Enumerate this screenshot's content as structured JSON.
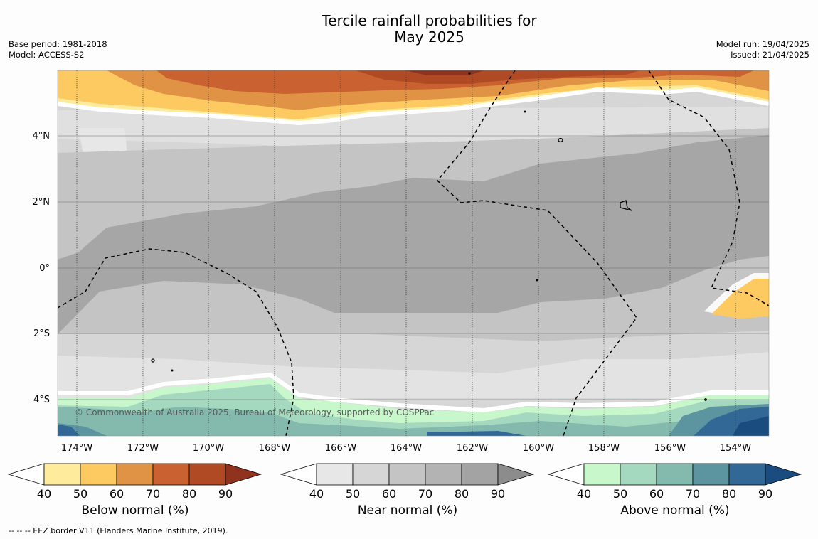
{
  "title": {
    "line1": "Tercile rainfall probabilities for",
    "line2": "May 2025"
  },
  "meta_left": {
    "base_period": "Base period: 1981-2018",
    "model": "Model: ACCESS-S2"
  },
  "meta_right": {
    "model_run": "Model run: 19/04/2025",
    "issued": "Issued: 21/04/2025"
  },
  "map": {
    "latitude_labels": [
      "4°N",
      "2°N",
      "0°",
      "2°S",
      "4°S"
    ],
    "longitude_labels": [
      "174°W",
      "172°W",
      "170°W",
      "168°W",
      "166°W",
      "164°W",
      "162°W",
      "160°W",
      "158°W",
      "156°W",
      "154°W"
    ],
    "copyright": "© Commonwealth of Australia 2025, Bureau of Meteorology, supported by COSPPac"
  },
  "colorbars": [
    {
      "id": "below",
      "title": "Below normal (%)",
      "ticks": [
        "40",
        "50",
        "60",
        "70",
        "80",
        "90"
      ],
      "colors": [
        "#ffeb9c",
        "#fdca62",
        "#e09245",
        "#ca6130",
        "#b04a25",
        "#8f321e"
      ]
    },
    {
      "id": "near",
      "title": "Near normal (%)",
      "ticks": [
        "40",
        "50",
        "60",
        "70",
        "80",
        "90"
      ],
      "colors": [
        "#e7e7e7",
        "#d6d6d6",
        "#c4c4c4",
        "#b3b3b3",
        "#a3a3a3",
        "#8c8c8c"
      ]
    },
    {
      "id": "above",
      "title": "Above normal (%)",
      "ticks": [
        "40",
        "50",
        "60",
        "70",
        "80",
        "90"
      ],
      "colors": [
        "#c8f7cc",
        "#a5d9bf",
        "#84b9ae",
        "#5c95a0",
        "#326896",
        "#1a4c80"
      ]
    }
  ],
  "footnote": "-- -- -- EEZ border V11 (Flanders Marine Institute, 2019)."
}
